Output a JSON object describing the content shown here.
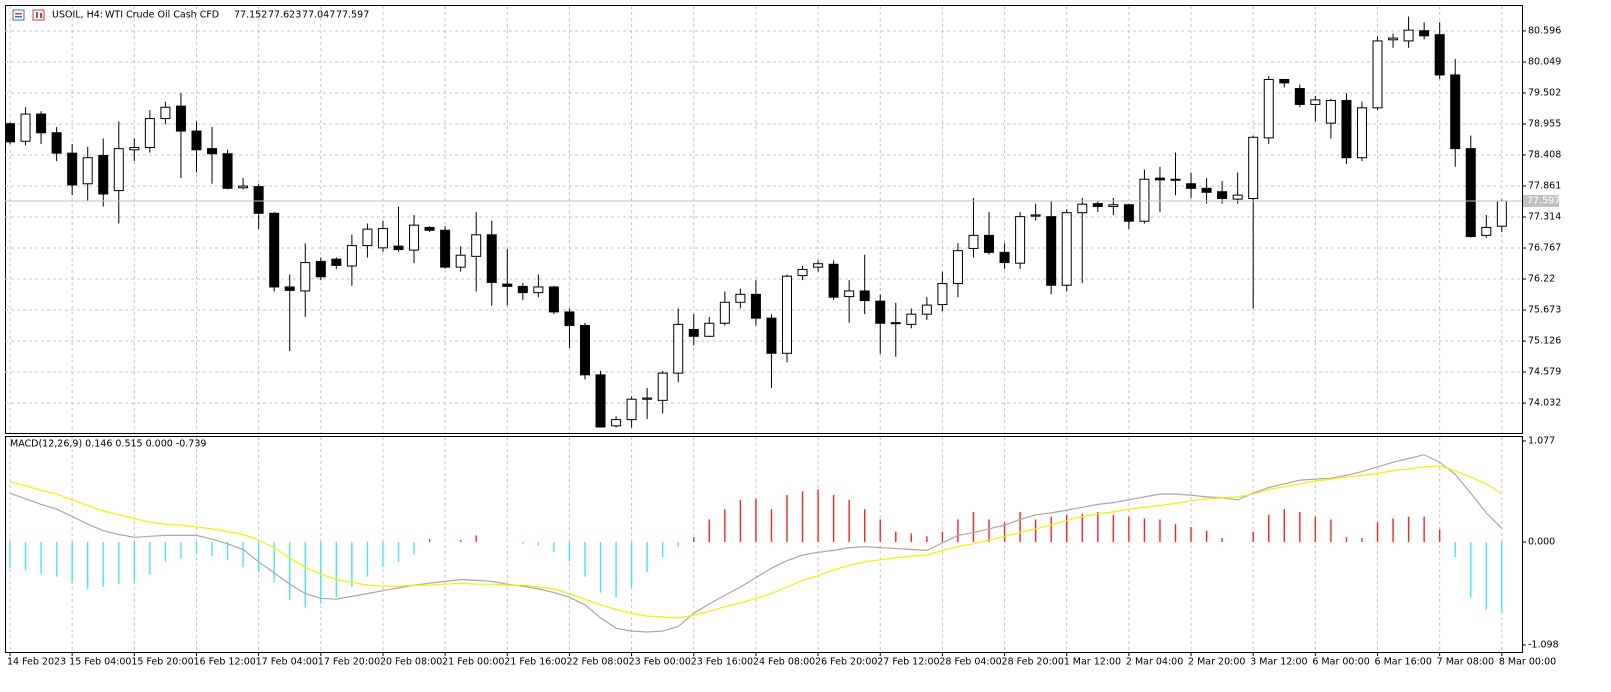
{
  "chart_data": [
    {
      "type": "candlestick",
      "symbol": "USOIL, H4:",
      "title": "WTI Crude Oil Cash CFD",
      "categories": [
        "14 Feb 2023",
        null,
        null,
        null,
        "15 Feb 04:00",
        null,
        null,
        null,
        "15 Feb 20:00",
        null,
        null,
        null,
        "16 Feb 12:00",
        null,
        null,
        null,
        "17 Feb 04:00",
        null,
        null,
        null,
        "17 Feb 20:00",
        null,
        null,
        null,
        "20 Feb 08:00",
        null,
        null,
        null,
        "21 Feb 00:00",
        null,
        null,
        null,
        "21 Feb 16:00",
        null,
        null,
        null,
        "22 Feb 08:00",
        null,
        null,
        null,
        "23 Feb 00:00",
        null,
        null,
        null,
        "23 Feb 16:00",
        null,
        null,
        null,
        "24 Feb 08:00",
        null,
        null,
        null,
        "26 Feb 20:00",
        null,
        null,
        null,
        "27 Feb 12:00",
        null,
        null,
        null,
        "28 Feb 04:00",
        null,
        null,
        null,
        "28 Feb 20:00",
        null,
        null,
        null,
        "1 Mar 12:00",
        null,
        null,
        null,
        "2 Mar 04:00",
        null,
        null,
        null,
        "2 Mar 20:00",
        null,
        null,
        null,
        "3 Mar 12:00",
        null,
        null,
        null,
        "6 Mar 00:00",
        null,
        null,
        null,
        "6 Mar 16:00",
        null,
        null,
        null,
        "7 Mar 08:00",
        null,
        null,
        null,
        "8 Mar 00:00"
      ],
      "open": [
        78.96,
        78.65,
        79.13,
        78.8,
        78.44,
        77.9,
        78.4,
        77.78,
        78.5,
        78.54,
        79.05,
        79.27,
        78.83,
        78.52,
        78.43,
        77.83,
        77.85,
        77.38,
        76.08,
        76.01,
        76.53,
        76.57,
        76.45,
        76.81,
        76.77,
        76.8,
        76.73,
        77.13,
        77.08,
        76.43,
        76.62,
        77.0,
        76.13,
        76.09,
        75.98,
        76.08,
        75.64,
        75.4,
        74.53,
        73.63,
        73.74,
        74.1,
        74.08,
        74.56,
        75.33,
        75.21,
        75.44,
        75.81,
        75.95,
        75.53,
        74.91,
        76.28,
        76.43,
        76.48,
        75.91,
        76.01,
        75.83,
        75.44,
        75.42,
        75.6,
        75.77,
        76.14,
        76.76,
        76.99,
        76.69,
        76.5,
        77.33,
        77.32,
        76.11,
        77.39,
        77.55,
        77.5,
        77.53,
        77.24,
        78.0,
        77.97,
        77.9,
        77.82,
        77.76,
        77.63,
        77.64,
        78.71,
        79.74,
        79.58,
        79.3,
        78.97,
        79.37,
        78.36,
        79.24,
        80.44,
        80.42,
        80.6,
        80.53,
        79.82,
        78.52,
        76.99,
        77.152
      ],
      "high": [
        78.98,
        79.25,
        79.18,
        78.9,
        78.6,
        78.55,
        78.7,
        79.0,
        78.7,
        79.2,
        79.35,
        79.5,
        79.0,
        78.9,
        78.5,
        78.0,
        77.9,
        77.4,
        76.3,
        76.85,
        76.6,
        76.6,
        77.0,
        77.2,
        77.25,
        77.5,
        77.35,
        77.15,
        77.15,
        76.8,
        77.4,
        77.25,
        76.75,
        76.15,
        76.3,
        76.1,
        75.7,
        75.45,
        74.6,
        73.8,
        74.15,
        74.3,
        74.6,
        75.7,
        75.6,
        75.55,
        76.0,
        76.05,
        76.2,
        75.6,
        76.3,
        76.45,
        76.55,
        76.55,
        76.2,
        76.65,
        75.95,
        75.8,
        75.7,
        75.9,
        76.35,
        76.85,
        77.65,
        77.4,
        76.85,
        77.4,
        77.55,
        77.6,
        77.45,
        77.65,
        77.6,
        77.65,
        77.55,
        78.15,
        78.2,
        78.45,
        78.1,
        78.0,
        77.95,
        78.1,
        78.75,
        79.8,
        79.75,
        79.65,
        79.45,
        79.4,
        79.5,
        79.35,
        80.5,
        80.55,
        80.85,
        80.75,
        80.75,
        80.1,
        78.75,
        77.35,
        77.623
      ],
      "low": [
        78.6,
        78.58,
        78.6,
        78.3,
        77.7,
        77.6,
        77.5,
        77.2,
        78.3,
        78.45,
        78.95,
        78.0,
        78.1,
        77.9,
        77.8,
        77.8,
        77.1,
        76.0,
        74.95,
        75.55,
        76.2,
        76.4,
        76.1,
        76.6,
        76.7,
        76.7,
        76.5,
        77.05,
        76.4,
        76.35,
        76.0,
        75.75,
        75.75,
        75.85,
        75.9,
        75.6,
        75.0,
        74.45,
        73.6,
        73.6,
        73.6,
        73.75,
        73.85,
        74.4,
        75.05,
        75.2,
        75.4,
        75.7,
        75.4,
        74.3,
        74.75,
        76.2,
        76.35,
        75.85,
        75.45,
        75.6,
        74.9,
        74.85,
        75.35,
        75.5,
        75.65,
        75.9,
        76.6,
        76.65,
        76.4,
        76.4,
        77.25,
        75.95,
        76.0,
        76.15,
        77.4,
        77.35,
        77.1,
        77.2,
        77.4,
        77.7,
        77.65,
        77.55,
        77.55,
        77.55,
        75.7,
        78.6,
        79.6,
        79.25,
        79.0,
        78.7,
        78.25,
        78.3,
        79.2,
        80.3,
        80.3,
        80.45,
        79.75,
        78.2,
        76.95,
        76.95,
        77.047
      ],
      "close": [
        78.64,
        79.13,
        78.8,
        78.44,
        77.88,
        78.36,
        77.72,
        78.52,
        78.54,
        79.05,
        79.25,
        78.83,
        78.5,
        78.43,
        77.82,
        77.86,
        77.38,
        76.08,
        76.02,
        76.51,
        76.26,
        76.46,
        76.81,
        77.1,
        77.11,
        76.74,
        77.17,
        77.08,
        76.43,
        76.64,
        77.0,
        76.16,
        76.09,
        75.98,
        76.08,
        75.64,
        75.4,
        74.53,
        73.61,
        73.74,
        74.1,
        74.12,
        74.56,
        75.42,
        75.21,
        75.44,
        75.81,
        75.95,
        75.53,
        74.91,
        76.27,
        76.39,
        76.49,
        75.9,
        76.01,
        75.84,
        75.44,
        75.45,
        75.6,
        75.76,
        76.14,
        76.72,
        76.99,
        76.69,
        76.51,
        77.32,
        77.35,
        76.11,
        77.39,
        77.54,
        77.5,
        77.53,
        77.24,
        77.98,
        77.97,
        77.98,
        77.82,
        77.75,
        77.64,
        77.7,
        78.72,
        79.74,
        79.68,
        79.3,
        79.38,
        79.37,
        78.36,
        79.24,
        80.42,
        80.47,
        80.61,
        80.51,
        79.82,
        78.52,
        76.97,
        77.13,
        77.597
      ],
      "up_color": "#ffffff",
      "down_color": "#000000",
      "ylim": [
        73.504,
        81.036
      ],
      "yticks": [
        74.032,
        74.579,
        75.126,
        75.673,
        76.22,
        76.767,
        77.314,
        77.861,
        78.408,
        78.955,
        79.502,
        80.049,
        80.596
      ],
      "grid": true
    },
    {
      "type": "macd",
      "title": "MACD(12,26,9) 0.146 0.515 0.000 -0.739",
      "series": [
        {
          "kind": "histogram",
          "color": "#ff2020",
          "negative_color": "#40e8f0",
          "values": [
            -0.28,
            -0.3,
            -0.34,
            -0.37,
            -0.43,
            -0.5,
            -0.48,
            -0.45,
            -0.43,
            -0.35,
            -0.21,
            -0.18,
            -0.13,
            -0.15,
            -0.19,
            -0.27,
            -0.32,
            -0.43,
            -0.62,
            -0.7,
            -0.66,
            -0.59,
            -0.48,
            -0.37,
            -0.27,
            -0.21,
            -0.13,
            0.03,
            0.0,
            0.02,
            0.07,
            0.0,
            0.0,
            -0.02,
            -0.04,
            -0.11,
            -0.21,
            -0.37,
            -0.54,
            -0.59,
            -0.48,
            -0.32,
            -0.16,
            -0.05,
            0.05,
            0.24,
            0.35,
            0.45,
            0.46,
            0.35,
            0.5,
            0.54,
            0.56,
            0.5,
            0.45,
            0.35,
            0.24,
            0.11,
            0.09,
            0.06,
            0.11,
            0.24,
            0.32,
            0.24,
            0.21,
            0.32,
            0.24,
            0.27,
            0.29,
            0.3,
            0.32,
            0.29,
            0.27,
            0.25,
            0.24,
            0.19,
            0.16,
            0.12,
            0.04,
            0.0,
            0.11,
            0.29,
            0.35,
            0.32,
            0.27,
            0.24,
            0.05,
            0.04,
            0.21,
            0.25,
            0.27,
            0.27,
            0.13,
            -0.16,
            -0.59,
            -0.72,
            -0.739
          ]
        },
        {
          "kind": "line",
          "color": "#a8a8a8",
          "values": [
            0.52,
            0.46,
            0.4,
            0.35,
            0.27,
            0.19,
            0.12,
            0.08,
            0.05,
            0.06,
            0.07,
            0.07,
            0.07,
            0.03,
            -0.02,
            -0.08,
            -0.21,
            -0.33,
            -0.45,
            -0.55,
            -0.6,
            -0.61,
            -0.58,
            -0.55,
            -0.52,
            -0.49,
            -0.46,
            -0.44,
            -0.42,
            -0.4,
            -0.41,
            -0.42,
            -0.45,
            -0.47,
            -0.5,
            -0.54,
            -0.59,
            -0.67,
            -0.81,
            -0.92,
            -0.95,
            -0.96,
            -0.95,
            -0.9,
            -0.76,
            -0.66,
            -0.57,
            -0.48,
            -0.38,
            -0.28,
            -0.2,
            -0.14,
            -0.11,
            -0.09,
            -0.06,
            -0.05,
            -0.06,
            -0.07,
            -0.08,
            -0.09,
            -0.01,
            0.07,
            0.1,
            0.14,
            0.18,
            0.24,
            0.29,
            0.31,
            0.34,
            0.37,
            0.4,
            0.42,
            0.45,
            0.48,
            0.51,
            0.51,
            0.5,
            0.48,
            0.47,
            0.45,
            0.52,
            0.58,
            0.62,
            0.66,
            0.67,
            0.68,
            0.71,
            0.75,
            0.8,
            0.85,
            0.89,
            0.93,
            0.85,
            0.72,
            0.52,
            0.31,
            0.146
          ]
        },
        {
          "kind": "line",
          "color": "#f2f200",
          "values": [
            0.64,
            0.6,
            0.55,
            0.51,
            0.45,
            0.39,
            0.33,
            0.29,
            0.25,
            0.21,
            0.19,
            0.18,
            0.16,
            0.14,
            0.11,
            0.08,
            0.02,
            -0.06,
            -0.17,
            -0.27,
            -0.34,
            -0.4,
            -0.43,
            -0.46,
            -0.47,
            -0.47,
            -0.46,
            -0.46,
            -0.45,
            -0.44,
            -0.45,
            -0.45,
            -0.46,
            -0.46,
            -0.48,
            -0.5,
            -0.55,
            -0.61,
            -0.67,
            -0.72,
            -0.76,
            -0.79,
            -0.8,
            -0.81,
            -0.78,
            -0.74,
            -0.69,
            -0.65,
            -0.6,
            -0.55,
            -0.48,
            -0.41,
            -0.36,
            -0.3,
            -0.25,
            -0.21,
            -0.19,
            -0.17,
            -0.15,
            -0.14,
            -0.09,
            -0.05,
            -0.02,
            0.02,
            0.06,
            0.1,
            0.14,
            0.18,
            0.23,
            0.27,
            0.3,
            0.32,
            0.35,
            0.37,
            0.39,
            0.41,
            0.44,
            0.46,
            0.47,
            0.48,
            0.51,
            0.56,
            0.59,
            0.62,
            0.65,
            0.67,
            0.69,
            0.71,
            0.73,
            0.76,
            0.78,
            0.8,
            0.81,
            0.76,
            0.69,
            0.62,
            0.515
          ]
        }
      ],
      "ylim": [
        -1.173,
        1.119
      ],
      "yticks": [
        -1.098,
        {
          "value": 0,
          "label": "0.000"
        },
        1.077
      ]
    }
  ]
}
